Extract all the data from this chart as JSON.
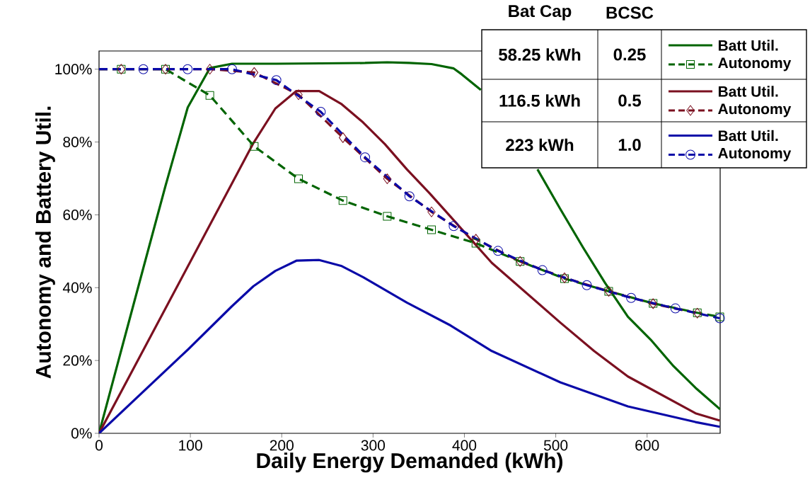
{
  "chart_data": {
    "type": "line",
    "xlabel": "Daily Energy Demanded (kWh)",
    "ylabel": "Autonomy and Battery Util.",
    "xlim": [
      0,
      680
    ],
    "ylim": [
      0,
      105
    ],
    "xticks": [
      0,
      100,
      200,
      300,
      400,
      500,
      600
    ],
    "yticks": [
      {
        "value": 0,
        "label": "0%"
      },
      {
        "value": 20,
        "label": "20%"
      },
      {
        "value": 40,
        "label": "40%"
      },
      {
        "value": 60,
        "label": "60%"
      },
      {
        "value": 80,
        "label": "80%"
      },
      {
        "value": 100,
        "label": "100%"
      }
    ],
    "legend": "top right",
    "annotations": [
      "Bat Cap",
      "BCSC",
      "58.25 kWh",
      "0.25",
      "116.5 kWh",
      "0.5",
      "223 kWh",
      "1.0"
    ],
    "series": [
      {
        "name": "Batt Util.",
        "color": "#006400",
        "line_style": "solid",
        "marker": "none",
        "x": [
          0,
          24.3,
          48.5,
          72.8,
          97.1,
          121.3,
          145.6,
          194.1,
          242.7,
          291.2,
          315.5,
          339.8,
          364,
          388.3,
          397,
          418,
          450,
          480,
          505,
          530,
          554,
          579,
          604,
          628,
          653,
          680
        ],
        "values": [
          0,
          22.8,
          45.4,
          68,
          89.5,
          100.3,
          101.5,
          101.5,
          101.6,
          101.7,
          101.9,
          101.7,
          101.4,
          100.2,
          98.6,
          94.3,
          null,
          72.5,
          61.6,
          51,
          41.3,
          32,
          25.7,
          18.7,
          12.5,
          6.6
        ]
      },
      {
        "name": "Autonomy",
        "color": "#006400",
        "line_style": "dashed",
        "marker": "square",
        "x": [
          0,
          24.3,
          72.8,
          121.3,
          169.9,
          218.4,
          267,
          315.5,
          364,
          412.6,
          461,
          509.6,
          558,
          606.6,
          655,
          679.6
        ],
        "values": [
          100,
          100,
          100,
          92.8,
          78.8,
          69.9,
          63.9,
          59.6,
          55.9,
          52.2,
          47.2,
          42.5,
          39,
          35.7,
          33.1,
          32
        ]
      },
      {
        "name": "Batt Util.",
        "color": "#7b1020",
        "line_style": "solid",
        "marker": "none",
        "x": [
          0,
          169,
          193,
          216,
          241,
          265,
          289,
          313,
          337,
          362,
          387,
          430,
          505,
          542,
          579,
          653,
          679.6
        ],
        "values": [
          0,
          79.7,
          89.2,
          94,
          94,
          90.5,
          85.4,
          79.4,
          72.5,
          65.9,
          58.9,
          46.8,
          30.4,
          22.6,
          15.6,
          5.5,
          3.5
        ]
      },
      {
        "name": "Autonomy",
        "color": "#7b1020",
        "line_style": "dashed",
        "marker": "diamond",
        "x": [
          0,
          24.3,
          72.8,
          121.3,
          169.9,
          218.4,
          267,
          315.5,
          364,
          412.6,
          461,
          509.6,
          558,
          606.6,
          655
        ],
        "values": [
          100,
          100,
          100,
          100,
          99.1,
          93,
          81.2,
          69.9,
          60.8,
          53.3,
          47.2,
          42.7,
          39,
          35.6,
          33
        ]
      },
      {
        "name": "Batt Util.",
        "color": "#0a0aa8",
        "line_style": "solid",
        "marker": "none",
        "x": [
          0,
          97.3,
          145.5,
          169,
          193,
          216,
          241,
          265,
          289,
          337,
          385,
          430,
          505,
          579,
          653,
          679.6
        ],
        "values": [
          0,
          23,
          34.9,
          40.4,
          44.6,
          47.4,
          47.6,
          46,
          42.9,
          35.9,
          29.6,
          22.6,
          14,
          7.4,
          3.1,
          1.8
        ]
      },
      {
        "name": "Autonomy",
        "color": "#0a0aa8",
        "line_style": "dashed",
        "marker": "circle",
        "x": [
          0,
          48.5,
          97,
          145.6,
          194.1,
          242.7,
          291.2,
          339.8,
          388.3,
          436.8,
          485.4,
          534,
          582.5,
          631,
          679.6
        ],
        "values": [
          100,
          100,
          100,
          100,
          97,
          88.3,
          75.8,
          65.1,
          56.9,
          50.1,
          44.8,
          40.7,
          37.2,
          34.3,
          31.6
        ]
      }
    ]
  }
}
